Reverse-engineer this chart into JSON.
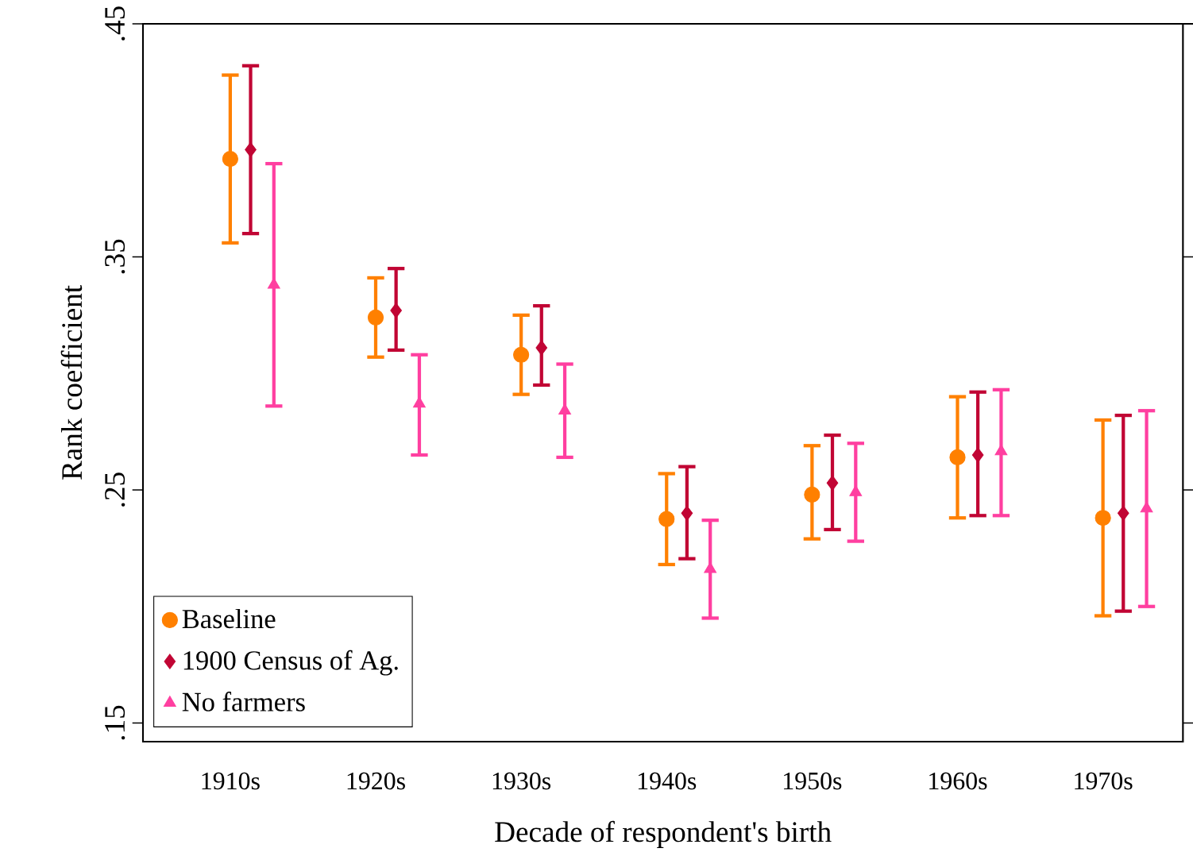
{
  "chart_data": {
    "type": "scatter",
    "xlabel": "Decade of respondent's birth",
    "ylabel": "Rank coefficient",
    "categories": [
      "1910s",
      "1920s",
      "1930s",
      "1940s",
      "1950s",
      "1960s",
      "1970s"
    ],
    "ylim": [
      0.142,
      0.45
    ],
    "yticks": [
      {
        "value": 0.15,
        "label": ".15"
      },
      {
        "value": 0.25,
        "label": ".25"
      },
      {
        "value": 0.35,
        "label": ".35"
      },
      {
        "value": 0.45,
        "label": ".45"
      }
    ],
    "grid": false,
    "legend": "bottom left",
    "series": [
      {
        "name": "Baseline",
        "color": "#ff8000",
        "marker": "circle",
        "values": [
          0.392,
          0.324,
          0.308,
          0.2375,
          0.248,
          0.264,
          0.238
        ],
        "errors": [
          [
            0.356,
            0.428
          ],
          [
            0.307,
            0.341
          ],
          [
            0.291,
            0.325
          ],
          [
            0.218,
            0.257
          ],
          [
            0.229,
            0.269
          ],
          [
            0.238,
            0.29
          ],
          [
            0.196,
            0.28
          ]
        ]
      },
      {
        "name": "1900 Census of Ag.",
        "color": "#c10534",
        "marker": "diamond",
        "values": [
          0.396,
          0.327,
          0.311,
          0.24,
          0.253,
          0.265,
          0.24
        ],
        "errors": [
          [
            0.36,
            0.432
          ],
          [
            0.31,
            0.345
          ],
          [
            0.295,
            0.329
          ],
          [
            0.2205,
            0.26
          ],
          [
            0.233,
            0.2735
          ],
          [
            0.239,
            0.292
          ],
          [
            0.198,
            0.282
          ]
        ]
      },
      {
        "name": "No farmers",
        "color": "#ff3fa0",
        "marker": "triangle",
        "values": [
          0.338,
          0.287,
          0.284,
          0.216,
          0.249,
          0.2665,
          0.242
        ],
        "errors": [
          [
            0.286,
            0.39
          ],
          [
            0.265,
            0.308
          ],
          [
            0.264,
            0.304
          ],
          [
            0.195,
            0.237
          ],
          [
            0.228,
            0.27
          ],
          [
            0.239,
            0.293
          ],
          [
            0.2,
            0.284
          ]
        ]
      }
    ]
  }
}
